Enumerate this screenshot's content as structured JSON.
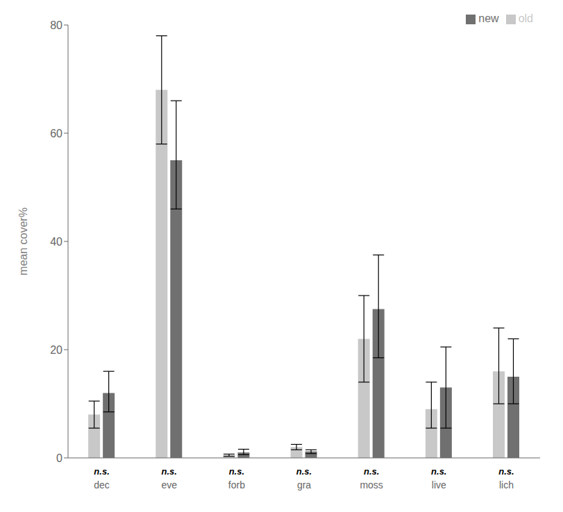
{
  "chart_data": {
    "type": "bar",
    "categories": [
      "dec",
      "eve",
      "forb",
      "gra",
      "moss",
      "live",
      "lich"
    ],
    "series": [
      {
        "name": "old",
        "color": "#c8c8c8",
        "values": [
          8.0,
          68.0,
          0.5,
          2.0,
          22.0,
          9.0,
          16.0
        ],
        "error_low": [
          2.5,
          10.0,
          0.2,
          0.5,
          8.0,
          3.5,
          6.0
        ],
        "error_high": [
          2.5,
          10.0,
          0.2,
          0.5,
          8.0,
          5.0,
          8.0
        ]
      },
      {
        "name": "new",
        "color": "#707070",
        "values": [
          12.0,
          55.0,
          1.0,
          1.2,
          27.5,
          13.0,
          15.0
        ],
        "error_low": [
          3.5,
          9.0,
          0.4,
          0.4,
          9.0,
          7.5,
          5.0
        ],
        "error_high": [
          4.0,
          11.0,
          0.6,
          0.3,
          10.0,
          7.5,
          7.0
        ]
      }
    ],
    "annotations": [
      "n.s.",
      "n.s.",
      "n.s.",
      "n.s.",
      "n.s.",
      "n.s.",
      "n.s."
    ],
    "ylabel": "mean cover%",
    "ylim": [
      0,
      80
    ],
    "yticks": [
      0,
      20,
      40,
      60,
      80
    ],
    "grid": false,
    "legend": "upper right"
  }
}
